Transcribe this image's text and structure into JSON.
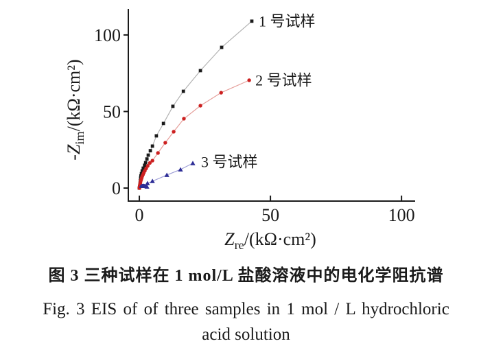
{
  "figure": {
    "caption_zh": "图 3  三种试样在 1 mol/L 盐酸溶液中的电化学阻抗谱",
    "caption_en_line1": "Fig. 3  EIS of of three samples in 1 mol / L hydrochloric",
    "caption_en_line2": "acid solution"
  },
  "chart_data": {
    "type": "scatter",
    "title": "",
    "grid": false,
    "legend_position": "labels-at-series-end",
    "xlabel": {
      "text": "Zre/(kΩ·cm²)",
      "parts": [
        {
          "text": "Z",
          "italic": true
        },
        {
          "text": "re",
          "script": "sub"
        },
        {
          "text": "/(kΩ·cm²)"
        }
      ]
    },
    "ylabel": {
      "text": "-Zim/(kΩ·cm²)",
      "parts": [
        {
          "text": "-"
        },
        {
          "text": "Z",
          "italic": true
        },
        {
          "text": "im",
          "script": "sub"
        },
        {
          "text": "/(kΩ·cm²)"
        }
      ]
    },
    "xlim": [
      -4.2,
      105.2
    ],
    "ylim": [
      -8.5,
      117.0
    ],
    "xticks": [
      0,
      50,
      100
    ],
    "yticks": [
      0,
      50,
      100
    ],
    "axis_color": "#1a1a1a",
    "series": [
      {
        "name": "1 号试样",
        "marker": "square",
        "marker_color": "#1a1a1a",
        "line_color": "#b2b2b2",
        "points": [
          [
            0,
            0
          ],
          [
            0.1,
            0.9
          ],
          [
            0.2,
            1.8
          ],
          [
            0.3,
            3.2
          ],
          [
            0.4,
            4.8
          ],
          [
            0.5,
            6.5
          ],
          [
            0.6,
            7.9
          ],
          [
            0.8,
            9.4
          ],
          [
            1.1,
            11.2
          ],
          [
            1.5,
            13.0
          ],
          [
            2.0,
            14.9
          ],
          [
            2.4,
            16.6
          ],
          [
            2.9,
            19.0
          ],
          [
            3.4,
            21.5
          ],
          [
            4.2,
            24.4
          ],
          [
            5.0,
            27.4
          ],
          [
            6.5,
            34.1
          ],
          [
            9.2,
            42.2
          ],
          [
            12.8,
            53.4
          ],
          [
            16.8,
            63.2
          ],
          [
            23.3,
            76.7
          ],
          [
            31.4,
            91.9
          ],
          [
            42.9,
            109.0
          ]
        ]
      },
      {
        "name": "2 号试样",
        "marker": "circle",
        "marker_color": "#cc2020",
        "line_color": "#e59f9b",
        "points": [
          [
            0,
            0
          ],
          [
            0.1,
            0.8
          ],
          [
            0.2,
            1.6
          ],
          [
            0.3,
            2.5
          ],
          [
            0.4,
            3.5
          ],
          [
            0.5,
            4.5
          ],
          [
            0.7,
            5.5
          ],
          [
            0.9,
            6.6
          ],
          [
            1.1,
            7.7
          ],
          [
            1.4,
            8.8
          ],
          [
            1.7,
            10.0
          ],
          [
            2.1,
            11.3
          ],
          [
            2.6,
            12.8
          ],
          [
            3.2,
            14.5
          ],
          [
            4.0,
            16.4
          ],
          [
            5.0,
            17.9
          ],
          [
            7.1,
            22.9
          ],
          [
            9.9,
            29.6
          ],
          [
            13.1,
            36.8
          ],
          [
            17.0,
            45.3
          ],
          [
            23.3,
            53.8
          ],
          [
            31.2,
            62.3
          ],
          [
            41.9,
            70.4
          ]
        ]
      },
      {
        "name": "3 号试样",
        "marker": "triangle",
        "marker_color": "#2d2d96",
        "line_color": "#9d9dd6",
        "hf_arc": {
          "x_start": 0,
          "x_end": 3.0,
          "peak_height": 2.8
        },
        "points": [
          [
            2.9,
            0.9
          ],
          [
            3.1,
            3.1
          ],
          [
            5.0,
            4.5
          ],
          [
            10.5,
            8.5
          ],
          [
            15.7,
            12.1
          ],
          [
            20.4,
            16.2
          ]
        ]
      }
    ]
  }
}
